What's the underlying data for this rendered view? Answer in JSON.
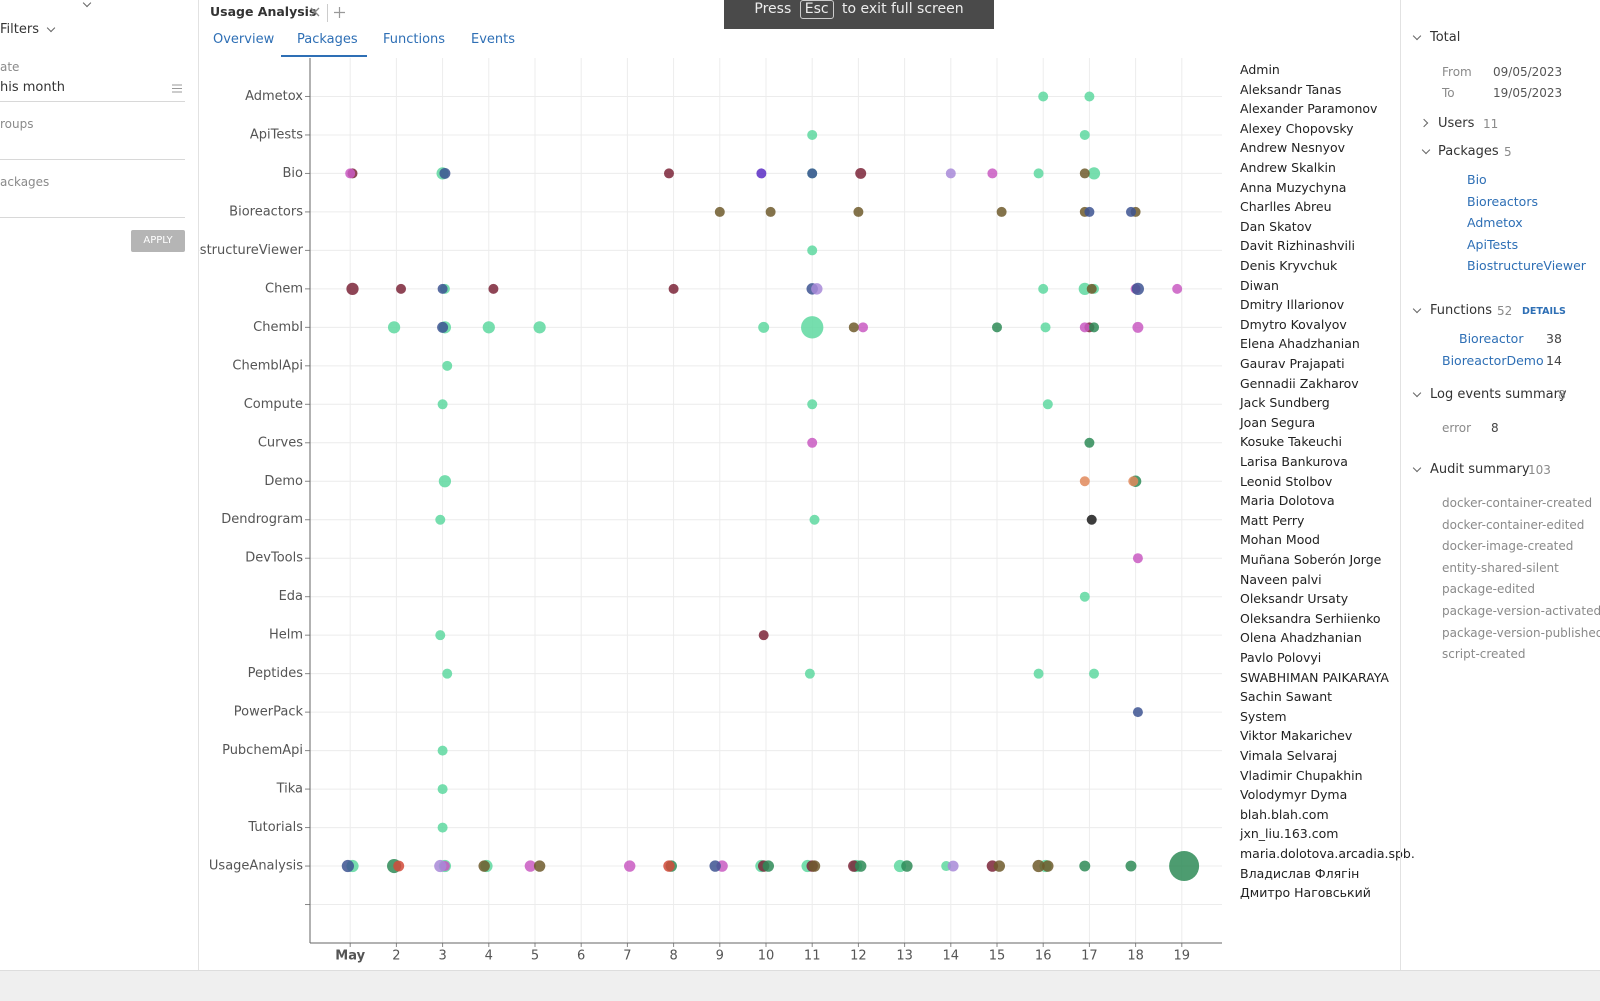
{
  "fullscreen_hint": {
    "before": "Press",
    "key": "Esc",
    "after": "to exit full screen"
  },
  "filters": {
    "title": "Filters",
    "date_label": "ate",
    "date_value": "his month",
    "groups_label": "roups",
    "packages_label": "ackages",
    "apply": "APPLY"
  },
  "view": {
    "title": "Usage Analysis",
    "tabs": [
      "Overview",
      "Packages",
      "Functions",
      "Events"
    ]
  },
  "chart_data": {
    "type": "scatter",
    "categories": [
      "Admetox",
      "ApiTests",
      "Bio",
      "Bioreactors",
      "BiostructureViewer",
      "Chem",
      "Chembl",
      "ChemblApi",
      "Compute",
      "Curves",
      "Demo",
      "Dendrogram",
      "DevTools",
      "Eda",
      "Helm",
      "Peptides",
      "PowerPack",
      "PubchemApi",
      "Tika",
      "Tutorials",
      "UsageAnalysis",
      null
    ],
    "xlim": [
      0.13,
      19.87
    ],
    "xticks": [
      {
        "value": 1,
        "label": "May"
      },
      2,
      3,
      4,
      5,
      6,
      7,
      8,
      9,
      10,
      11,
      12,
      13,
      14,
      15,
      16,
      17,
      18,
      19
    ],
    "grid": true,
    "series": [
      {
        "color": "#5ed8a0",
        "x": [
          16.0,
          17.0,
          11.0,
          16.9,
          3.0,
          11.0,
          15.9,
          17.1,
          11.0,
          3.05,
          16.0,
          16.9,
          17.1,
          1.95,
          3.05,
          4.0,
          5.1,
          9.95,
          11.0,
          16.05,
          3.1,
          3.0,
          11.0,
          16.1,
          3.05,
          2.95,
          11.05,
          16.9,
          2.95,
          3.1,
          10.95,
          15.9,
          17.1,
          3.0,
          3.0,
          3.0,
          1.05,
          3.05,
          3.95,
          9.9,
          10.9,
          11.95,
          12.9,
          13.9,
          16.05
        ],
        "y": [
          "Admetox",
          "Admetox",
          "ApiTests",
          "ApiTests",
          "Bio",
          "Bio",
          "Bio",
          "Bio",
          "BiostructureViewer",
          "Chem",
          "Chem",
          "Chem",
          "Chem",
          "Chembl",
          "Chembl",
          "Chembl",
          "Chembl",
          "Chembl",
          "Chembl",
          "Chembl",
          "ChemblApi",
          "Compute",
          "Compute",
          "Compute",
          "Demo",
          "Dendrogram",
          "Dendrogram",
          "Eda",
          "Helm",
          "Peptides",
          "Peptides",
          "Peptides",
          "Peptides",
          "PubchemApi",
          "Tika",
          "Tutorials",
          "UsageAnalysis",
          "UsageAnalysis",
          "UsageAnalysis",
          "UsageAnalysis",
          "UsageAnalysis",
          "UsageAnalysis",
          "UsageAnalysis",
          "UsageAnalysis",
          "UsageAnalysis"
        ],
        "sizes": [
          1,
          1,
          1,
          1,
          1.5,
          1,
          1,
          1.5,
          1,
          1,
          1,
          1.5,
          1,
          1.5,
          1.5,
          1.5,
          1.5,
          1.2,
          5,
          1,
          1,
          1,
          1,
          1,
          1.5,
          1,
          1,
          1,
          1,
          1,
          1,
          1,
          1,
          1,
          1,
          1,
          1.5,
          1.5,
          1.5,
          1.5,
          1.5,
          1.5,
          1.5,
          1,
          1.5
        ]
      },
      {
        "color": "#7b2438",
        "x": [
          1.05,
          7.9,
          12.05,
          1.05,
          2.1,
          4.1,
          8.0,
          17.0,
          9.95,
          9.95,
          11.0,
          11.9,
          14.9
        ],
        "y": [
          "Bio",
          "Bio",
          "Bio",
          "Chem",
          "Chem",
          "Chem",
          "Chem",
          "Chembl",
          "Helm",
          "UsageAnalysis",
          "UsageAnalysis",
          "UsageAnalysis",
          "UsageAnalysis"
        ],
        "sizes": [
          1,
          1,
          1.2,
          1.5,
          1,
          1,
          1,
          1,
          1,
          1.3,
          1.3,
          1.3,
          1.3
        ]
      },
      {
        "color": "#c95bc2",
        "x": [
          1.0,
          14.9,
          18.0,
          18.9,
          12.1,
          16.9,
          18.05,
          11.0,
          18.05,
          3.05,
          4.9,
          7.05,
          9.05
        ],
        "y": [
          "Bio",
          "Bio",
          "Chem",
          "Chem",
          "Chembl",
          "Chembl",
          "Chembl",
          "Curves",
          "DevTools",
          "UsageAnalysis",
          "UsageAnalysis",
          "UsageAnalysis",
          "UsageAnalysis"
        ],
        "sizes": [
          1,
          1,
          1,
          1,
          1,
          1,
          1.2,
          1,
          1,
          1,
          1.3,
          1.3,
          1.3
        ]
      },
      {
        "color": "#6e5a2b",
        "x": [
          16.9,
          9.0,
          10.1,
          12.0,
          15.1,
          16.9,
          18.0,
          17.05,
          11.9,
          3.9,
          5.1,
          11.05,
          15.05,
          15.9,
          16.1
        ],
        "y": [
          "Bio",
          "Bioreactors",
          "Bioreactors",
          "Bioreactors",
          "Bioreactors",
          "Bioreactors",
          "Bioreactors",
          "Chem",
          "Chembl",
          "UsageAnalysis",
          "UsageAnalysis",
          "UsageAnalysis",
          "UsageAnalysis",
          "UsageAnalysis",
          "UsageAnalysis"
        ],
        "sizes": [
          1,
          1,
          1,
          1,
          1,
          1,
          1,
          1,
          1,
          1.3,
          1.3,
          1.3,
          1.3,
          1.5,
          1.3
        ]
      },
      {
        "color": "#3d5392",
        "x": [
          3.05,
          11.0,
          17.0,
          17.9,
          3.0,
          11.0,
          18.05,
          3.0,
          18.05,
          0.95,
          8.9
        ],
        "y": [
          "Bio",
          "Bio",
          "Bioreactors",
          "Bioreactors",
          "Chem",
          "Chem",
          "Chem",
          "Chembl",
          "PowerPack",
          "UsageAnalysis",
          "UsageAnalysis"
        ],
        "sizes": [
          1.2,
          1,
          1,
          1,
          1,
          1.3,
          1.5,
          1.2,
          1,
          1.5,
          1.3
        ]
      },
      {
        "color": "#2e8b57",
        "x": [
          15.0,
          17.1,
          17.0,
          18.0,
          1.95,
          7.95,
          10.05,
          12.05,
          13.05,
          16.9,
          17.9,
          19.05
        ],
        "y": [
          "Chembl",
          "Chembl",
          "Curves",
          "Demo",
          "UsageAnalysis",
          "UsageAnalysis",
          "UsageAnalysis",
          "UsageAnalysis",
          "UsageAnalysis",
          "UsageAnalysis",
          "UsageAnalysis",
          "UsageAnalysis"
        ],
        "sizes": [
          1,
          1,
          1,
          1.3,
          2,
          1.3,
          1.3,
          1.3,
          1.3,
          1.2,
          1.2,
          9
        ]
      },
      {
        "color": "#5a2dc4",
        "x": [
          9.9
        ],
        "y": [
          "Bio"
        ],
        "sizes": [
          1
        ]
      },
      {
        "color": "#a88ad8",
        "x": [
          14.0,
          11.1,
          2.95,
          14.05
        ],
        "y": [
          "Bio",
          "Chem",
          "UsageAnalysis",
          "UsageAnalysis"
        ],
        "sizes": [
          1,
          1.3,
          1.5,
          1.2
        ]
      },
      {
        "color": "#e0885a",
        "x": [
          16.9,
          17.95
        ],
        "y": [
          "Demo",
          "Demo"
        ],
        "sizes": [
          1,
          1
        ]
      },
      {
        "color": "#d24a3a",
        "x": [
          2.05,
          7.9
        ],
        "y": [
          "UsageAnalysis",
          "UsageAnalysis"
        ],
        "sizes": [
          1.2,
          1.3
        ]
      },
      {
        "color": "#1b1b1b",
        "x": [
          17.05
        ],
        "y": [
          "Dendrogram"
        ],
        "sizes": [
          1
        ]
      }
    ]
  },
  "users": [
    "Admin",
    "Aleksandr Tanas",
    "Alexander Paramonov",
    "Alexey Chopovsky",
    "Andrew Nesnyov",
    "Andrew Skalkin",
    "Anna Muzychyna",
    "Charlles Abreu",
    "Dan Skatov",
    "Davit Rizhinashvili",
    "Denis Kryvchuk",
    "Diwan",
    "Dmitry Illarionov",
    "Dmytro Kovalyov",
    "Elena Ahadzhanian",
    "Gaurav Prajapati",
    "Gennadii Zakharov",
    "Jack Sundberg",
    "Joan Segura",
    "Kosuke Takeuchi",
    "Larisa Bankurova",
    "Leonid Stolbov",
    "Maria Dolotova",
    "Matt Perry",
    "Mohan Mood",
    "Muñana Soberón Jorge",
    "Naveen palvi",
    "Oleksandr Ursaty",
    "Oleksandra Serhiienko",
    "Olena Ahadzhanian",
    "Pavlo Polovyi",
    "SWABHIMAN PAIKARAYA",
    "Sachin Sawant",
    "System",
    "Viktor Makarichev",
    "Vimala Selvaraj",
    "Vladimir Chupakhin",
    "Volodymyr Dyma",
    "blah.blah.com",
    "jxn_liu.163.com",
    "maria.dolotova.arcadia.spb.",
    "Владислав Флягін",
    "Дмитро Наговський"
  ],
  "summary": {
    "total": {
      "label": "Total",
      "from_label": "From",
      "from": "09/05/2023",
      "to_label": "To",
      "to": "19/05/2023"
    },
    "users": {
      "label": "Users",
      "count": "11"
    },
    "packages": {
      "label": "Packages",
      "count": "5",
      "items": [
        "Bio",
        "Bioreactors",
        "Admetox",
        "ApiTests",
        "BiostructureViewer"
      ]
    },
    "functions": {
      "label": "Functions",
      "count": "52",
      "details": "DETAILS",
      "items": [
        {
          "name": "Bioreactor",
          "count": "38"
        },
        {
          "name": "BioreactorDemo",
          "count": "14"
        }
      ]
    },
    "log_events": {
      "label": "Log events summary",
      "count": "8",
      "items": [
        {
          "name": "error",
          "count": "8"
        }
      ]
    },
    "audit": {
      "label": "Audit summary",
      "count": "103",
      "items": [
        "docker-container-created",
        "docker-container-edited",
        "docker-image-created",
        "entity-shared-silent",
        "package-edited",
        "package-version-activated",
        "package-version-published",
        "script-created"
      ]
    }
  }
}
